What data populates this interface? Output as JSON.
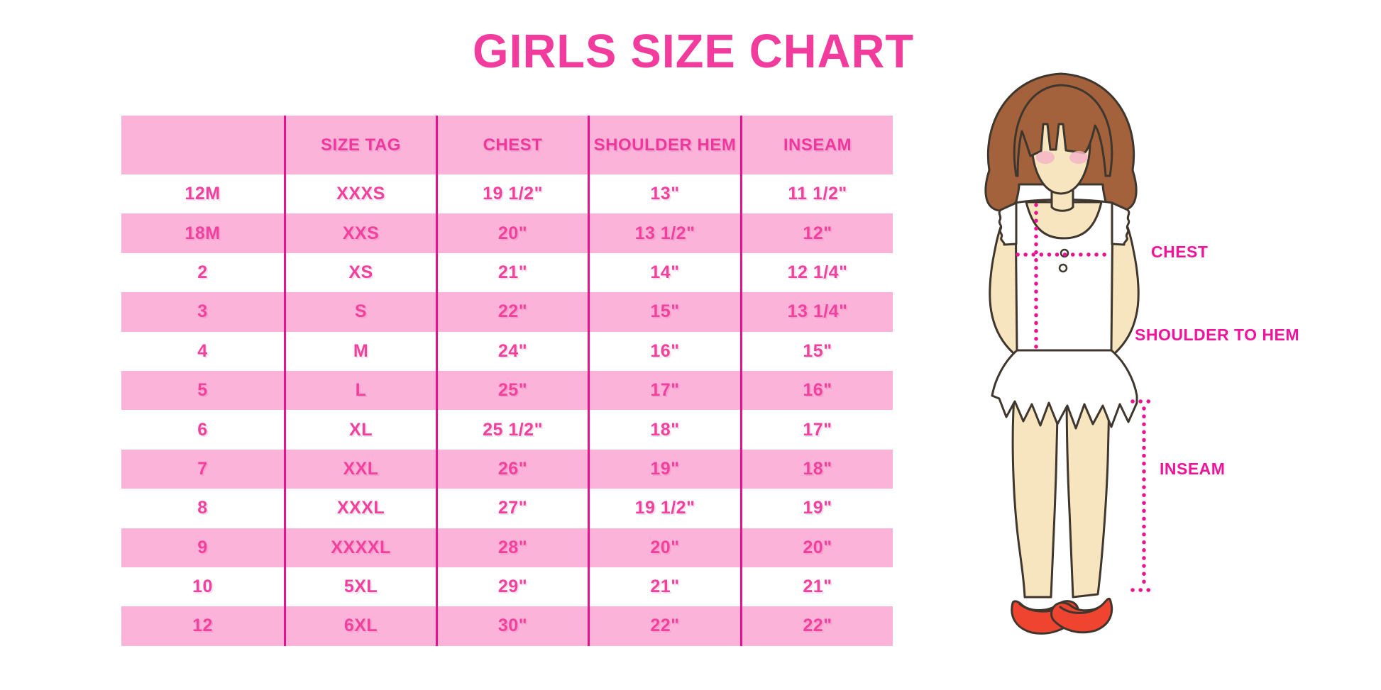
{
  "chart_data": {
    "type": "table",
    "title": "GIRLS SIZE CHART",
    "columns": [
      "",
      "SIZE TAG",
      "CHEST",
      "SHOULDER HEM",
      "INSEAM"
    ],
    "rows": [
      [
        "12M",
        "XXXS",
        "19 1/2\"",
        "13\"",
        "11 1/2\""
      ],
      [
        "18M",
        "XXS",
        "20\"",
        "13 1/2\"",
        "12\""
      ],
      [
        "2",
        "XS",
        "21\"",
        "14\"",
        "12 1/4\""
      ],
      [
        "3",
        "S",
        "22\"",
        "15\"",
        "13 1/4\""
      ],
      [
        "4",
        "M",
        "24\"",
        "16\"",
        "15\""
      ],
      [
        "5",
        "L",
        "25\"",
        "17\"",
        "16\""
      ],
      [
        "6",
        "XL",
        "25 1/2\"",
        "18\"",
        "17\""
      ],
      [
        "7",
        "XXL",
        "26\"",
        "19\"",
        "18\""
      ],
      [
        "8",
        "XXXL",
        "27\"",
        "19 1/2\"",
        "19\""
      ],
      [
        "9",
        "XXXXL",
        "28\"",
        "20\"",
        "20\""
      ],
      [
        "10",
        "5XL",
        "29\"",
        "21\"",
        "21\""
      ],
      [
        "12",
        "6XL",
        "30\"",
        "22\"",
        "22\""
      ]
    ],
    "annotations": [
      "CHEST",
      "SHOULDER TO HEM",
      "INSEAM"
    ],
    "legend_position": "none",
    "grid": "alternating pink/white rows with magenta column dividers"
  },
  "figure": {
    "labels": {
      "chest": "CHEST",
      "shoulder_to_hem": "SHOULDER TO HEM",
      "inseam": "INSEAM"
    }
  },
  "colors": {
    "title_pink": "#f13c9e",
    "row_pink": "#fbb3da",
    "divider_magenta": "#e7128c",
    "cell_text_pink": "#f1419c",
    "measure_line_magenta": "#ec1391",
    "hair_brown": "#a3623c",
    "skin": "#f7e5bf",
    "blush": "#f5b5c5",
    "shoe_red": "#ee4430"
  }
}
